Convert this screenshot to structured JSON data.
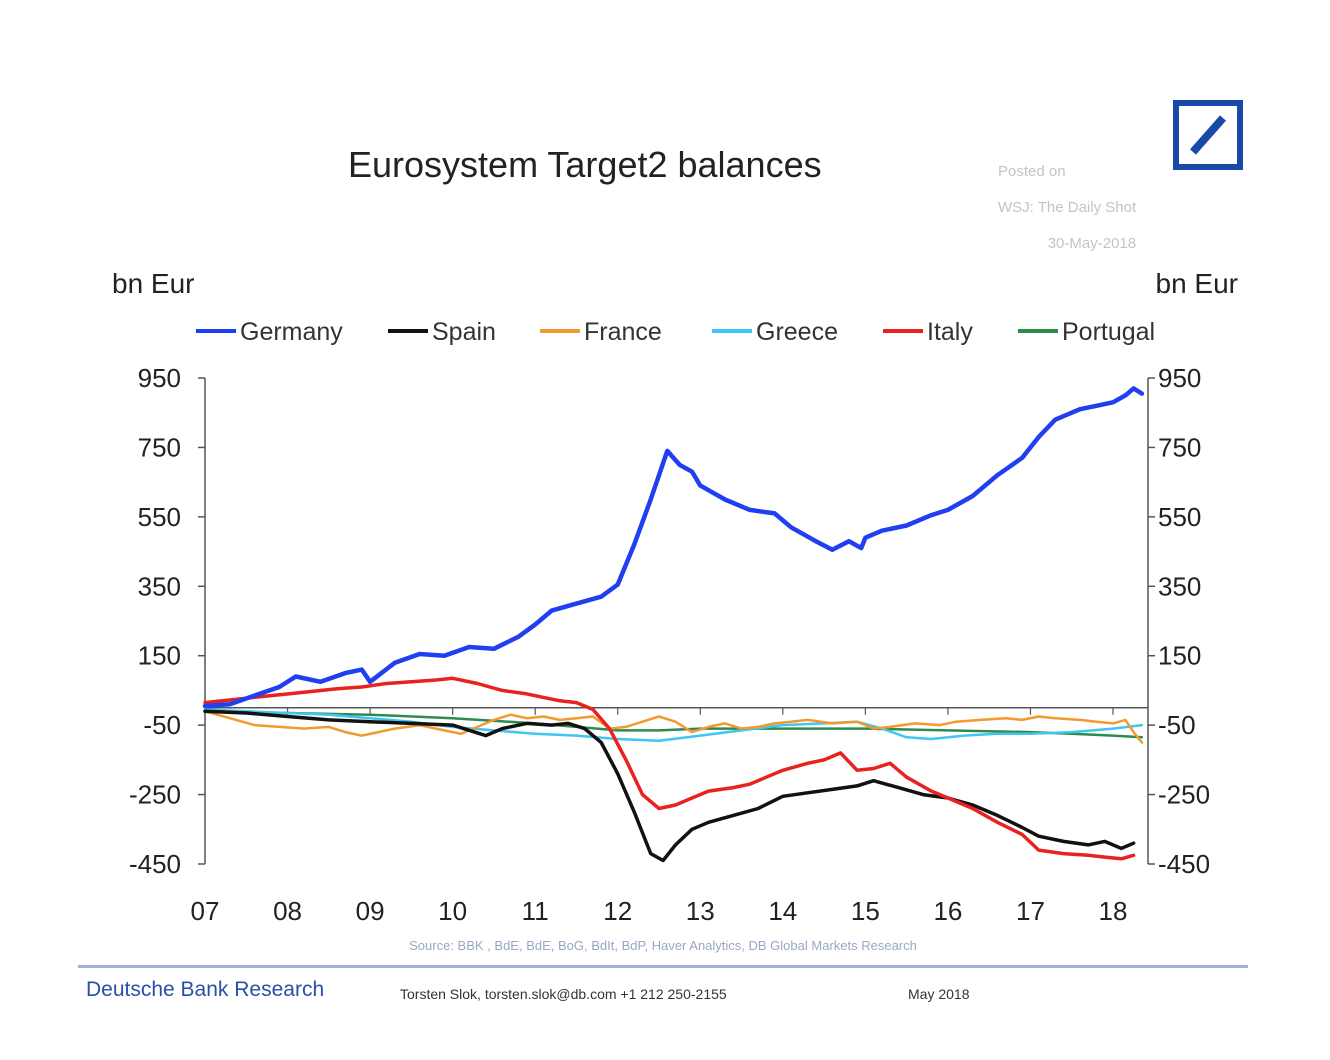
{
  "header": {
    "title": "Eurosystem Target2 balances",
    "posted": [
      "Posted on",
      "WSJ: The Daily Shot",
      "30-May-2018"
    ]
  },
  "footer": {
    "source": "Source: BBK , BdE, BdE, BoG, BdIt, BdP, Haver Analytics, DB Global Markets Research",
    "brand": "Deutsche Bank Research",
    "contact": "Torsten Slok, torsten.slok@db.com +1 212 250-2155",
    "date": "May 2018"
  },
  "colors": {
    "logo": "#1a4aa8"
  },
  "chart_data": {
    "type": "line",
    "title": "Eurosystem Target2 balances",
    "ylabel_left": "bn Eur",
    "ylabel_right": "bn Eur",
    "ylim": [
      -450,
      950
    ],
    "yticks": [
      950,
      750,
      550,
      350,
      150,
      -50,
      -250,
      -450
    ],
    "xlim": [
      2007.0,
      2018.4
    ],
    "xticks": [
      {
        "v": 2007.0,
        "label": "07"
      },
      {
        "v": 2008.0,
        "label": "08"
      },
      {
        "v": 2009.0,
        "label": "09"
      },
      {
        "v": 2010.0,
        "label": "10"
      },
      {
        "v": 2011.0,
        "label": "11"
      },
      {
        "v": 2012.0,
        "label": "12"
      },
      {
        "v": 2013.0,
        "label": "13"
      },
      {
        "v": 2014.0,
        "label": "14"
      },
      {
        "v": 2015.0,
        "label": "15"
      },
      {
        "v": 2016.0,
        "label": "16"
      },
      {
        "v": 2017.0,
        "label": "17"
      },
      {
        "v": 2018.0,
        "label": "18"
      }
    ],
    "legend_position": "top",
    "series": [
      {
        "name": "Germany",
        "color": "#1f3ff0",
        "width": 4.5,
        "points": [
          [
            2007.0,
            5
          ],
          [
            2007.3,
            10
          ],
          [
            2007.6,
            35
          ],
          [
            2007.9,
            60
          ],
          [
            2008.1,
            90
          ],
          [
            2008.4,
            75
          ],
          [
            2008.7,
            100
          ],
          [
            2008.9,
            110
          ],
          [
            2009.0,
            75
          ],
          [
            2009.3,
            130
          ],
          [
            2009.6,
            155
          ],
          [
            2009.9,
            150
          ],
          [
            2010.2,
            175
          ],
          [
            2010.5,
            170
          ],
          [
            2010.8,
            205
          ],
          [
            2011.0,
            240
          ],
          [
            2011.2,
            280
          ],
          [
            2011.5,
            300
          ],
          [
            2011.8,
            320
          ],
          [
            2012.0,
            355
          ],
          [
            2012.2,
            470
          ],
          [
            2012.4,
            600
          ],
          [
            2012.6,
            740
          ],
          [
            2012.75,
            700
          ],
          [
            2012.9,
            680
          ],
          [
            2013.0,
            640
          ],
          [
            2013.3,
            600
          ],
          [
            2013.6,
            570
          ],
          [
            2013.9,
            560
          ],
          [
            2014.1,
            520
          ],
          [
            2014.4,
            480
          ],
          [
            2014.6,
            455
          ],
          [
            2014.8,
            480
          ],
          [
            2014.95,
            460
          ],
          [
            2015.0,
            490
          ],
          [
            2015.2,
            510
          ],
          [
            2015.5,
            525
          ],
          [
            2015.8,
            555
          ],
          [
            2016.0,
            570
          ],
          [
            2016.3,
            610
          ],
          [
            2016.6,
            670
          ],
          [
            2016.9,
            720
          ],
          [
            2017.1,
            780
          ],
          [
            2017.3,
            830
          ],
          [
            2017.6,
            860
          ],
          [
            2017.8,
            870
          ],
          [
            2018.0,
            880
          ],
          [
            2018.15,
            900
          ],
          [
            2018.25,
            920
          ],
          [
            2018.35,
            905
          ]
        ]
      },
      {
        "name": "Spain",
        "color": "#111111",
        "width": 3.5,
        "points": [
          [
            2007.0,
            -10
          ],
          [
            2007.5,
            -15
          ],
          [
            2008.0,
            -25
          ],
          [
            2008.5,
            -35
          ],
          [
            2009.0,
            -40
          ],
          [
            2009.5,
            -45
          ],
          [
            2010.0,
            -50
          ],
          [
            2010.4,
            -80
          ],
          [
            2010.6,
            -60
          ],
          [
            2010.9,
            -45
          ],
          [
            2011.2,
            -50
          ],
          [
            2011.4,
            -45
          ],
          [
            2011.6,
            -60
          ],
          [
            2011.8,
            -100
          ],
          [
            2012.0,
            -190
          ],
          [
            2012.2,
            -300
          ],
          [
            2012.4,
            -420
          ],
          [
            2012.55,
            -440
          ],
          [
            2012.7,
            -395
          ],
          [
            2012.9,
            -350
          ],
          [
            2013.1,
            -330
          ],
          [
            2013.4,
            -310
          ],
          [
            2013.7,
            -290
          ],
          [
            2014.0,
            -255
          ],
          [
            2014.3,
            -245
          ],
          [
            2014.6,
            -235
          ],
          [
            2014.9,
            -225
          ],
          [
            2015.1,
            -210
          ],
          [
            2015.4,
            -230
          ],
          [
            2015.7,
            -250
          ],
          [
            2016.0,
            -260
          ],
          [
            2016.3,
            -280
          ],
          [
            2016.6,
            -310
          ],
          [
            2016.9,
            -345
          ],
          [
            2017.1,
            -370
          ],
          [
            2017.4,
            -385
          ],
          [
            2017.7,
            -395
          ],
          [
            2017.9,
            -385
          ],
          [
            2018.1,
            -405
          ],
          [
            2018.25,
            -390
          ]
        ]
      },
      {
        "name": "France",
        "color": "#f29a2e",
        "width": 2.5,
        "points": [
          [
            2007.0,
            -10
          ],
          [
            2007.3,
            -30
          ],
          [
            2007.6,
            -50
          ],
          [
            2007.9,
            -55
          ],
          [
            2008.2,
            -60
          ],
          [
            2008.5,
            -55
          ],
          [
            2008.7,
            -70
          ],
          [
            2008.9,
            -80
          ],
          [
            2009.1,
            -70
          ],
          [
            2009.3,
            -60
          ],
          [
            2009.6,
            -50
          ],
          [
            2009.9,
            -65
          ],
          [
            2010.1,
            -75
          ],
          [
            2010.3,
            -55
          ],
          [
            2010.5,
            -35
          ],
          [
            2010.7,
            -20
          ],
          [
            2010.9,
            -30
          ],
          [
            2011.1,
            -25
          ],
          [
            2011.3,
            -35
          ],
          [
            2011.5,
            -30
          ],
          [
            2011.7,
            -25
          ],
          [
            2011.9,
            -60
          ],
          [
            2012.1,
            -55
          ],
          [
            2012.3,
            -40
          ],
          [
            2012.5,
            -25
          ],
          [
            2012.7,
            -40
          ],
          [
            2012.9,
            -70
          ],
          [
            2013.1,
            -55
          ],
          [
            2013.3,
            -45
          ],
          [
            2013.5,
            -60
          ],
          [
            2013.7,
            -55
          ],
          [
            2013.9,
            -45
          ],
          [
            2014.1,
            -40
          ],
          [
            2014.3,
            -35
          ],
          [
            2014.6,
            -45
          ],
          [
            2014.9,
            -40
          ],
          [
            2015.1,
            -60
          ],
          [
            2015.3,
            -55
          ],
          [
            2015.6,
            -45
          ],
          [
            2015.9,
            -50
          ],
          [
            2016.1,
            -40
          ],
          [
            2016.4,
            -35
          ],
          [
            2016.7,
            -30
          ],
          [
            2016.9,
            -35
          ],
          [
            2017.1,
            -25
          ],
          [
            2017.3,
            -30
          ],
          [
            2017.6,
            -35
          ],
          [
            2017.8,
            -40
          ],
          [
            2018.0,
            -45
          ],
          [
            2018.15,
            -35
          ],
          [
            2018.25,
            -70
          ],
          [
            2018.35,
            -100
          ]
        ]
      },
      {
        "name": "Greece",
        "color": "#3fc6f2",
        "width": 2.5,
        "points": [
          [
            2007.0,
            -5
          ],
          [
            2007.5,
            -10
          ],
          [
            2008.0,
            -15
          ],
          [
            2008.5,
            -20
          ],
          [
            2009.0,
            -30
          ],
          [
            2009.5,
            -40
          ],
          [
            2010.0,
            -55
          ],
          [
            2010.5,
            -65
          ],
          [
            2011.0,
            -75
          ],
          [
            2011.5,
            -80
          ],
          [
            2012.0,
            -90
          ],
          [
            2012.5,
            -95
          ],
          [
            2013.0,
            -80
          ],
          [
            2013.5,
            -65
          ],
          [
            2014.0,
            -50
          ],
          [
            2014.5,
            -45
          ],
          [
            2014.9,
            -40
          ],
          [
            2015.2,
            -60
          ],
          [
            2015.5,
            -85
          ],
          [
            2015.8,
            -90
          ],
          [
            2016.2,
            -80
          ],
          [
            2016.6,
            -75
          ],
          [
            2017.0,
            -75
          ],
          [
            2017.5,
            -70
          ],
          [
            2018.0,
            -60
          ],
          [
            2018.35,
            -50
          ]
        ]
      },
      {
        "name": "Italy",
        "color": "#e8231f",
        "width": 3.5,
        "points": [
          [
            2007.0,
            15
          ],
          [
            2007.4,
            25
          ],
          [
            2007.8,
            35
          ],
          [
            2008.2,
            45
          ],
          [
            2008.6,
            55
          ],
          [
            2008.9,
            60
          ],
          [
            2009.2,
            70
          ],
          [
            2009.5,
            75
          ],
          [
            2009.8,
            80
          ],
          [
            2010.0,
            85
          ],
          [
            2010.3,
            70
          ],
          [
            2010.6,
            50
          ],
          [
            2010.9,
            40
          ],
          [
            2011.1,
            30
          ],
          [
            2011.3,
            20
          ],
          [
            2011.5,
            15
          ],
          [
            2011.7,
            -5
          ],
          [
            2011.9,
            -60
          ],
          [
            2012.1,
            -150
          ],
          [
            2012.3,
            -250
          ],
          [
            2012.5,
            -290
          ],
          [
            2012.7,
            -280
          ],
          [
            2012.9,
            -260
          ],
          [
            2013.1,
            -240
          ],
          [
            2013.4,
            -230
          ],
          [
            2013.6,
            -220
          ],
          [
            2013.8,
            -200
          ],
          [
            2014.0,
            -180
          ],
          [
            2014.3,
            -160
          ],
          [
            2014.5,
            -150
          ],
          [
            2014.7,
            -130
          ],
          [
            2014.9,
            -180
          ],
          [
            2015.1,
            -175
          ],
          [
            2015.3,
            -160
          ],
          [
            2015.5,
            -200
          ],
          [
            2015.8,
            -240
          ],
          [
            2016.0,
            -260
          ],
          [
            2016.3,
            -290
          ],
          [
            2016.6,
            -330
          ],
          [
            2016.9,
            -365
          ],
          [
            2017.1,
            -410
          ],
          [
            2017.4,
            -420
          ],
          [
            2017.7,
            -425
          ],
          [
            2017.9,
            -430
          ],
          [
            2018.1,
            -435
          ],
          [
            2018.25,
            -425
          ]
        ]
      },
      {
        "name": "Portugal",
        "color": "#2e8b4e",
        "width": 2.5,
        "points": [
          [
            2007.0,
            -10
          ],
          [
            2008.0,
            -15
          ],
          [
            2009.0,
            -20
          ],
          [
            2010.0,
            -30
          ],
          [
            2011.0,
            -45
          ],
          [
            2011.5,
            -55
          ],
          [
            2012.0,
            -65
          ],
          [
            2012.5,
            -65
          ],
          [
            2013.0,
            -60
          ],
          [
            2014.0,
            -60
          ],
          [
            2015.0,
            -60
          ],
          [
            2016.0,
            -65
          ],
          [
            2017.0,
            -70
          ],
          [
            2017.5,
            -75
          ],
          [
            2018.0,
            -80
          ],
          [
            2018.35,
            -85
          ]
        ]
      }
    ]
  }
}
